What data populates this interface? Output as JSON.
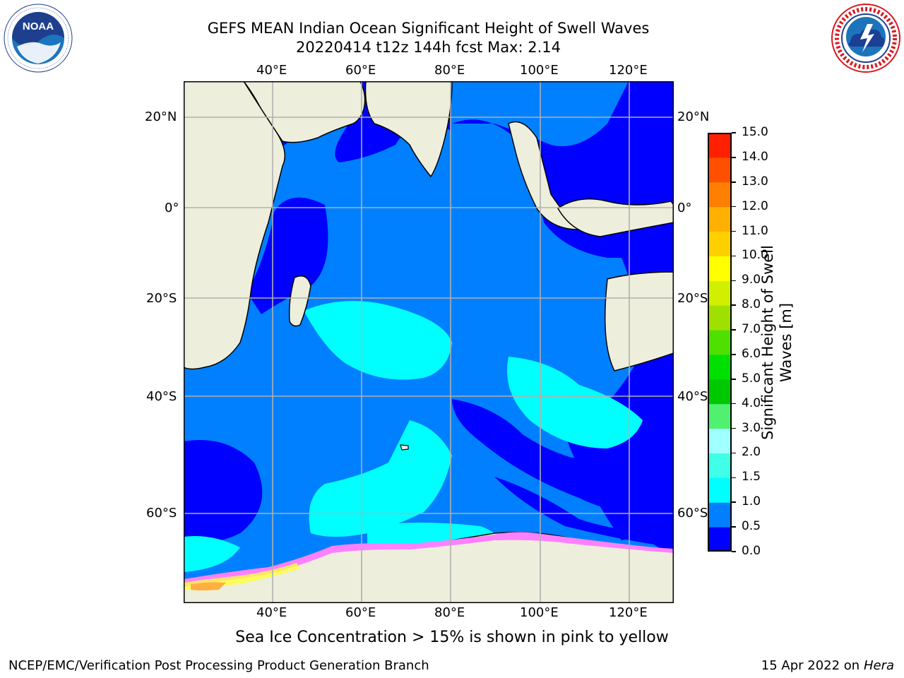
{
  "header": {
    "title_line1": "GEFS MEAN Indian Ocean Significant Height of Swell Waves",
    "title_line2": "20220414 t12z 144h fcst   Max: 2.14"
  },
  "logos": {
    "left": {
      "text": "NOAA",
      "ring_text": "NATIONAL OCEANIC AND ATMOSPHERIC ADMINISTRATION · U.S. DEPARTMENT OF COMMERCE"
    },
    "right": {
      "ring_text": "NATIONAL WEATHER SERVICE"
    }
  },
  "map": {
    "lon_labels": [
      "40°E",
      "60°E",
      "80°E",
      "100°E",
      "120°E"
    ],
    "lat_labels": [
      "20°N",
      "0°",
      "20°S",
      "40°S",
      "60°S"
    ],
    "ocean_colors": {
      "deep": "#0000ff",
      "mid": "#0080ff",
      "high": "#00ffff",
      "land": "#eeeedc",
      "ice": "#ffffff"
    }
  },
  "colorbar": {
    "title_line1": "Significant Height of Swell",
    "title_line2": "Waves [m]",
    "ticks": [
      "0.0",
      "0.5",
      "1.0",
      "1.5",
      "2.0",
      "3.0",
      "4.0",
      "5.0",
      "6.0",
      "7.0",
      "8.0",
      "9.0",
      "10.0",
      "11.0",
      "12.0",
      "13.0",
      "14.0",
      "15.0"
    ],
    "colors": [
      "#0000ff",
      "#0080ff",
      "#00ffff",
      "#40ffe8",
      "#a0ffff",
      "#50f070",
      "#00c800",
      "#00e000",
      "#50e000",
      "#a0e000",
      "#d0f000",
      "#ffff00",
      "#ffd000",
      "#ffb000",
      "#ff8000",
      "#ff5000",
      "#ff2000"
    ]
  },
  "caption": "Sea Ice Concentration > 15% is shown in pink to yellow",
  "footer": {
    "left": "NCEP/EMC/Verification Post Processing Product Generation Branch",
    "right_prefix": "15 Apr 2022 on ",
    "right_italic": "Hera"
  }
}
